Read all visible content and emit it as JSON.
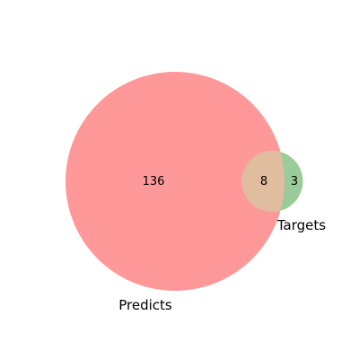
{
  "chart_data": {
    "type": "venn",
    "title": "",
    "sets": [
      {
        "name": "Predicts",
        "color": "#ff9999"
      },
      {
        "name": "Targets",
        "color": "#99cc99"
      }
    ],
    "regions": {
      "predicts_only": 136,
      "both": 8,
      "targets_only": 3
    },
    "overlap_color": "#e0bd9e",
    "background": "#ffffff"
  }
}
